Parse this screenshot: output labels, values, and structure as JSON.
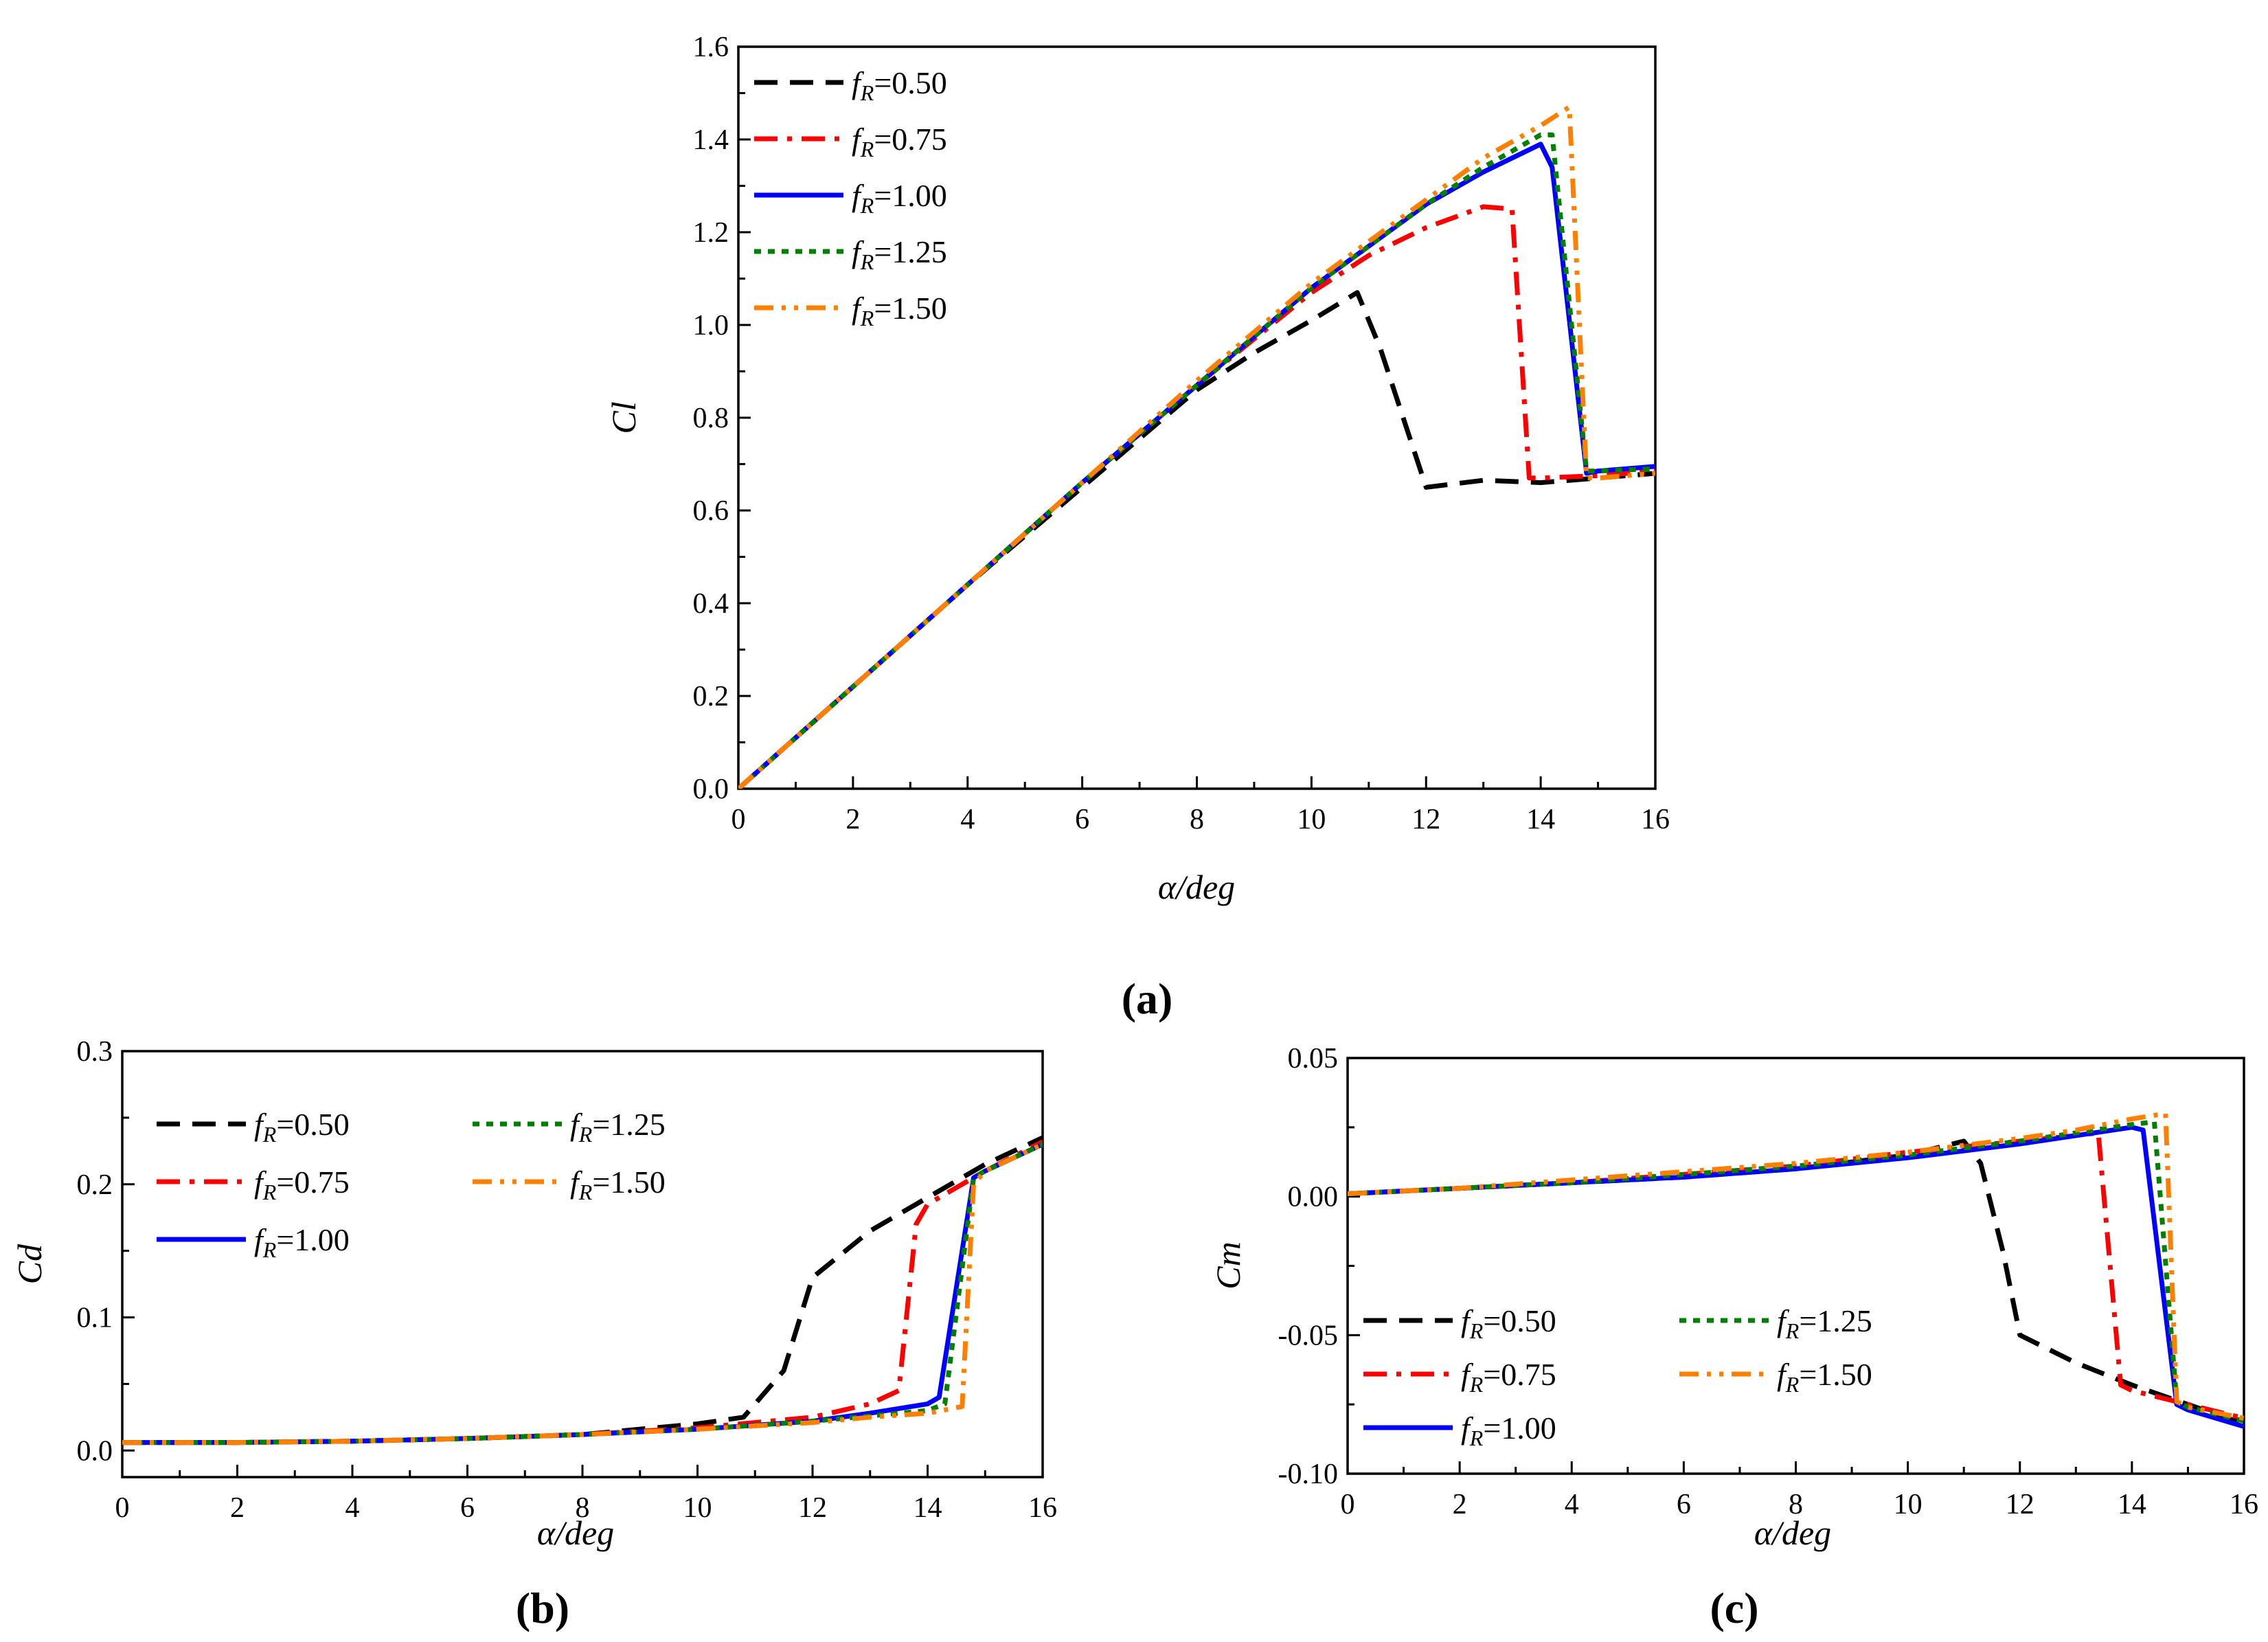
{
  "figure": {
    "panel_labels": [
      "(a)",
      "(b)",
      "(c)"
    ]
  },
  "chart_data": [
    {
      "id": "a",
      "type": "line",
      "panel_label": "(a)",
      "title": "",
      "xlabel": "α/deg",
      "ylabel": "Cl",
      "xlim": [
        0,
        16
      ],
      "ylim": [
        0,
        1.6
      ],
      "xticks": [
        0,
        2,
        4,
        6,
        8,
        10,
        12,
        14,
        16
      ],
      "xtick_labels": [
        "0",
        "2",
        "4",
        "6",
        "8",
        "10",
        "12",
        "14",
        "16"
      ],
      "yticks": [
        0,
        0.2,
        0.4,
        0.6,
        0.8,
        1.0,
        1.2,
        1.4,
        1.6
      ],
      "ytick_labels": [
        "0.0",
        "0.2",
        "0.4",
        "0.6",
        "0.8",
        "1.0",
        "1.2",
        "1.4",
        "1.6"
      ],
      "legend_position": "top-left",
      "series": [
        {
          "name": "fR=0.50",
          "label_main": "f",
          "label_sub": "R",
          "label_value": "=0.50",
          "color": "#000000",
          "dash": "dashed",
          "x": [
            0,
            2,
            4,
            6,
            8,
            9,
            10,
            10.8,
            11.2,
            12,
            13,
            14,
            15,
            16
          ],
          "y": [
            0,
            0.22,
            0.44,
            0.65,
            0.86,
            0.94,
            1.01,
            1.07,
            0.95,
            0.65,
            0.665,
            0.66,
            0.67,
            0.68
          ]
        },
        {
          "name": "fR=0.75",
          "label_main": "f",
          "label_sub": "R",
          "label_value": "=0.75",
          "color": "#ff0000",
          "dash": "dashdot",
          "x": [
            0,
            2,
            4,
            6,
            8,
            10,
            11,
            12,
            13,
            13.5,
            13.8,
            14,
            15,
            16
          ],
          "y": [
            0,
            0.22,
            0.44,
            0.66,
            0.87,
            1.07,
            1.15,
            1.21,
            1.255,
            1.25,
            0.67,
            0.67,
            0.675,
            0.685
          ]
        },
        {
          "name": "fR=1.00",
          "label_main": "f",
          "label_sub": "R",
          "label_value": "=1.00",
          "color": "#0000ff",
          "dash": "solid",
          "x": [
            0,
            2,
            4,
            6,
            8,
            10,
            11,
            12,
            13,
            14,
            14.2,
            14.8,
            15,
            16
          ],
          "y": [
            0,
            0.22,
            0.44,
            0.66,
            0.87,
            1.08,
            1.17,
            1.26,
            1.33,
            1.39,
            1.34,
            0.68,
            0.685,
            0.695
          ]
        },
        {
          "name": "fR=1.25",
          "label_main": "f",
          "label_sub": "R",
          "label_value": "=1.25",
          "color": "#008000",
          "dash": "dotted",
          "x": [
            0,
            2,
            4,
            6,
            8,
            10,
            11,
            12,
            13,
            14,
            14.2,
            14.8,
            15,
            16
          ],
          "y": [
            0,
            0.22,
            0.44,
            0.66,
            0.87,
            1.08,
            1.17,
            1.26,
            1.34,
            1.41,
            1.41,
            0.685,
            0.685,
            0.69
          ]
        },
        {
          "name": "fR=1.50",
          "label_main": "f",
          "label_sub": "R",
          "label_value": "=1.50",
          "color": "#ff8000",
          "dash": "dashdotdot",
          "x": [
            0,
            2,
            4,
            6,
            8,
            10,
            11,
            12,
            13,
            14,
            14.5,
            14.8,
            15,
            16
          ],
          "y": [
            0,
            0.22,
            0.44,
            0.66,
            0.88,
            1.09,
            1.18,
            1.27,
            1.36,
            1.43,
            1.47,
            0.67,
            0.67,
            0.68
          ]
        }
      ]
    },
    {
      "id": "b",
      "type": "line",
      "panel_label": "(b)",
      "title": "",
      "xlabel": "α/deg",
      "ylabel": "Cd",
      "xlim": [
        0,
        16
      ],
      "ylim": [
        -0.02,
        0.3
      ],
      "xticks": [
        0,
        2,
        4,
        6,
        8,
        10,
        12,
        14,
        16
      ],
      "xtick_labels": [
        "0",
        "2",
        "4",
        "6",
        "8",
        "10",
        "12",
        "14",
        "16"
      ],
      "yticks": [
        0,
        0.1,
        0.2,
        0.3
      ],
      "ytick_labels": [
        "0.0",
        "0.1",
        "0.2",
        "0.3"
      ],
      "legend_position": "top-left",
      "series": [
        {
          "name": "fR=0.50",
          "label_main": "f",
          "label_sub": "R",
          "label_value": "=0.50",
          "color": "#000000",
          "dash": "dashed",
          "x": [
            0,
            2,
            4,
            6,
            8,
            10,
            10.8,
            11.5,
            12,
            13,
            14,
            15,
            16
          ],
          "y": [
            0.006,
            0.006,
            0.007,
            0.009,
            0.012,
            0.02,
            0.025,
            0.06,
            0.13,
            0.165,
            0.19,
            0.215,
            0.235
          ]
        },
        {
          "name": "fR=0.75",
          "label_main": "f",
          "label_sub": "R",
          "label_value": "=0.75",
          "color": "#ff0000",
          "dash": "dashdot",
          "x": [
            0,
            2,
            4,
            6,
            8,
            10,
            12,
            13,
            13.5,
            13.8,
            14,
            15,
            16
          ],
          "y": [
            0.006,
            0.006,
            0.007,
            0.009,
            0.012,
            0.017,
            0.025,
            0.035,
            0.045,
            0.17,
            0.185,
            0.21,
            0.232
          ]
        },
        {
          "name": "fR=1.00",
          "label_main": "f",
          "label_sub": "R",
          "label_value": "=1.00",
          "color": "#0000ff",
          "dash": "solid",
          "x": [
            0,
            2,
            4,
            6,
            8,
            10,
            12,
            13,
            14,
            14.2,
            14.8,
            15,
            16
          ],
          "y": [
            0.006,
            0.006,
            0.007,
            0.009,
            0.012,
            0.016,
            0.022,
            0.028,
            0.035,
            0.04,
            0.205,
            0.21,
            0.23
          ]
        },
        {
          "name": "fR=1.25",
          "label_main": "f",
          "label_sub": "R",
          "label_value": "=1.25",
          "color": "#008000",
          "dash": "dotted",
          "x": [
            0,
            2,
            4,
            6,
            8,
            10,
            12,
            13,
            14,
            14.3,
            14.8,
            15,
            16
          ],
          "y": [
            0.006,
            0.006,
            0.007,
            0.009,
            0.012,
            0.016,
            0.022,
            0.026,
            0.03,
            0.035,
            0.205,
            0.21,
            0.23
          ]
        },
        {
          "name": "fR=1.50",
          "label_main": "f",
          "label_sub": "R",
          "label_value": "=1.50",
          "color": "#ff8000",
          "dash": "dashdotdot",
          "x": [
            0,
            2,
            4,
            6,
            8,
            10,
            12,
            13,
            14,
            14.6,
            14.8,
            15,
            16
          ],
          "y": [
            0.006,
            0.006,
            0.007,
            0.009,
            0.012,
            0.016,
            0.021,
            0.025,
            0.028,
            0.033,
            0.2,
            0.21,
            0.23
          ]
        }
      ]
    },
    {
      "id": "c",
      "type": "line",
      "panel_label": "(c)",
      "title": "",
      "xlabel": "α/deg",
      "ylabel": "Cm",
      "xlim": [
        0,
        16
      ],
      "ylim": [
        -0.1,
        0.05
      ],
      "xticks": [
        0,
        2,
        4,
        6,
        8,
        10,
        12,
        14,
        16
      ],
      "xtick_labels": [
        "0",
        "2",
        "4",
        "6",
        "8",
        "10",
        "12",
        "14",
        "16"
      ],
      "yticks": [
        -0.1,
        -0.05,
        0,
        0.05
      ],
      "ytick_labels": [
        "-0.10",
        "-0.05",
        "0.00",
        "0.05"
      ],
      "legend_position": "bottom-left",
      "series": [
        {
          "name": "fR=0.50",
          "label_main": "f",
          "label_sub": "R",
          "label_value": "=0.50",
          "color": "#000000",
          "dash": "dashed",
          "x": [
            0,
            2,
            4,
            6,
            8,
            10,
            11,
            11.3,
            11.7,
            12,
            13,
            14,
            15,
            16
          ],
          "y": [
            0.001,
            0.003,
            0.005,
            0.007,
            0.01,
            0.015,
            0.02,
            0.012,
            -0.02,
            -0.05,
            -0.06,
            -0.068,
            -0.075,
            -0.082
          ]
        },
        {
          "name": "fR=0.75",
          "label_main": "f",
          "label_sub": "R",
          "label_value": "=0.75",
          "color": "#ff0000",
          "dash": "dashdot",
          "x": [
            0,
            2,
            4,
            6,
            8,
            10,
            12,
            13,
            13.4,
            13.8,
            14,
            15,
            16
          ],
          "y": [
            0.001,
            0.003,
            0.005,
            0.008,
            0.011,
            0.016,
            0.02,
            0.022,
            0.023,
            -0.068,
            -0.07,
            -0.075,
            -0.08
          ]
        },
        {
          "name": "fR=1.00",
          "label_main": "f",
          "label_sub": "R",
          "label_value": "=1.00",
          "color": "#0000ff",
          "dash": "solid",
          "x": [
            0,
            2,
            4,
            6,
            8,
            10,
            12,
            13,
            14,
            14.2,
            14.8,
            15,
            16
          ],
          "y": [
            0.001,
            0.003,
            0.005,
            0.007,
            0.01,
            0.014,
            0.019,
            0.022,
            0.025,
            0.024,
            -0.075,
            -0.077,
            -0.083
          ]
        },
        {
          "name": "fR=1.25",
          "label_main": "f",
          "label_sub": "R",
          "label_value": "=1.25",
          "color": "#008000",
          "dash": "dotted",
          "x": [
            0,
            2,
            4,
            6,
            8,
            10,
            12,
            13,
            14,
            14.4,
            14.8,
            15,
            16
          ],
          "y": [
            0.001,
            0.003,
            0.005,
            0.008,
            0.011,
            0.015,
            0.02,
            0.023,
            0.026,
            0.027,
            -0.074,
            -0.076,
            -0.081
          ]
        },
        {
          "name": "fR=1.50",
          "label_main": "f",
          "label_sub": "R",
          "label_value": "=1.50",
          "color": "#ff8000",
          "dash": "dashdotdot",
          "x": [
            0,
            2,
            4,
            6,
            8,
            10,
            12,
            13,
            14,
            14.6,
            14.8,
            15,
            16
          ],
          "y": [
            0.001,
            0.003,
            0.006,
            0.009,
            0.012,
            0.016,
            0.021,
            0.024,
            0.028,
            0.03,
            -0.074,
            -0.076,
            -0.08
          ]
        }
      ]
    }
  ]
}
